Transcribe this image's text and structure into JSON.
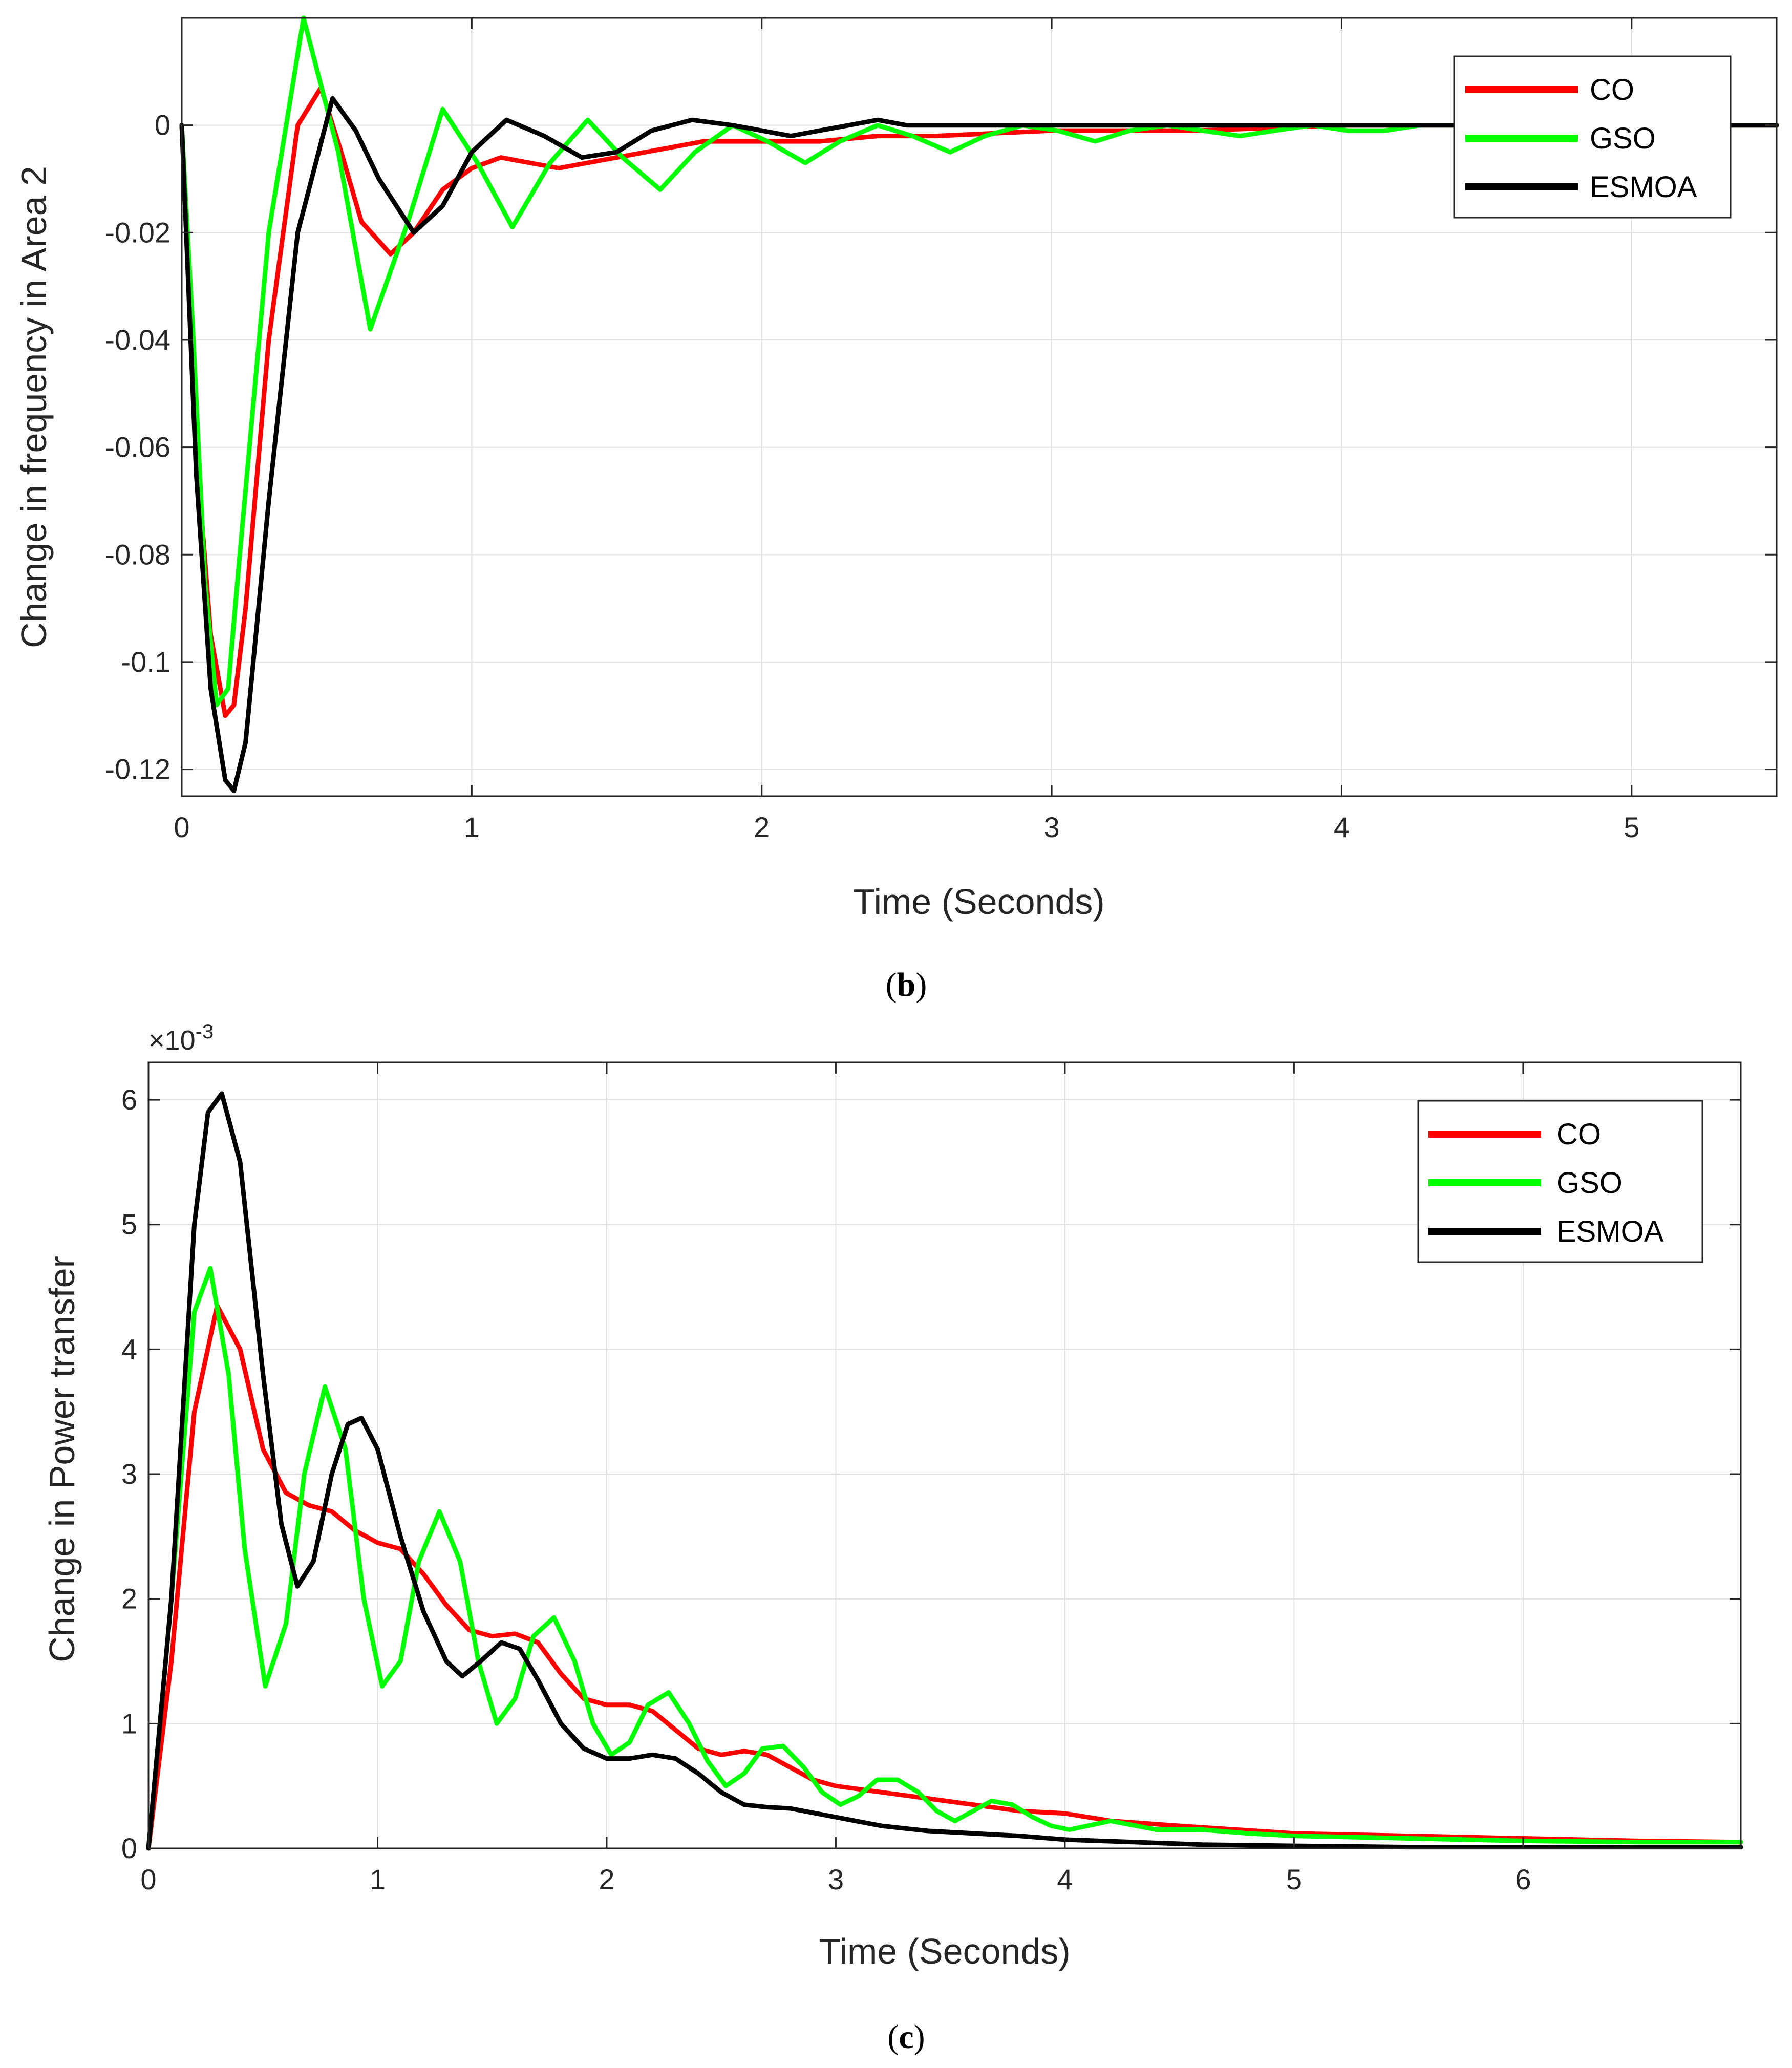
{
  "colors": {
    "CO": "#ff0000",
    "GSO": "#00ff00",
    "ESMOA": "#000000",
    "grid": "#e0e0e0",
    "axis": "#262626"
  },
  "chart_data": [
    {
      "type": "line",
      "caption_open": "(",
      "caption_letter": "b",
      "caption_close": ")",
      "title": "",
      "xlabel": "Time (Seconds)",
      "ylabel": "Change in frequency in Area 2",
      "xlim": [
        0,
        5.5
      ],
      "ylim": [
        -0.125,
        0.02
      ],
      "grid": true,
      "legend_position": "top-right",
      "xticks": [
        0,
        1,
        2,
        3,
        4,
        5
      ],
      "xtick_labels": [
        "0",
        "1",
        "2",
        "3",
        "4",
        "5"
      ],
      "yticks": [
        0,
        -0.02,
        -0.04,
        -0.06,
        -0.08,
        -0.1,
        -0.12
      ],
      "ytick_labels": [
        "0",
        "-0.02",
        "-0.04",
        "-0.06",
        "-0.08",
        "-0.1",
        "-0.12"
      ],
      "series": [
        {
          "name": "CO",
          "color": "#ff0000",
          "x": [
            0,
            0.05,
            0.1,
            0.15,
            0.18,
            0.22,
            0.3,
            0.4,
            0.48,
            0.55,
            0.62,
            0.72,
            0.8,
            0.9,
            1.0,
            1.1,
            1.2,
            1.3,
            1.4,
            1.5,
            1.6,
            1.7,
            1.8,
            1.9,
            2.0,
            2.2,
            2.4,
            2.6,
            3.0,
            3.5,
            4.0,
            4.5,
            5.0,
            5.5
          ],
          "y": [
            0,
            -0.06,
            -0.095,
            -0.11,
            -0.108,
            -0.09,
            -0.04,
            0,
            0.007,
            -0.005,
            -0.018,
            -0.024,
            -0.02,
            -0.012,
            -0.008,
            -0.006,
            -0.007,
            -0.008,
            -0.007,
            -0.006,
            -0.005,
            -0.004,
            -0.003,
            -0.003,
            -0.003,
            -0.003,
            -0.002,
            -0.002,
            -0.001,
            -0.001,
            0,
            0,
            0,
            0
          ]
        },
        {
          "name": "GSO",
          "color": "#00ff00",
          "x": [
            0,
            0.04,
            0.08,
            0.12,
            0.16,
            0.2,
            0.3,
            0.42,
            0.54,
            0.65,
            0.78,
            0.9,
            1.02,
            1.14,
            1.27,
            1.4,
            1.52,
            1.65,
            1.77,
            1.9,
            2.02,
            2.15,
            2.27,
            2.4,
            2.52,
            2.65,
            2.77,
            2.9,
            3.02,
            3.15,
            3.27,
            3.4,
            3.52,
            3.65,
            3.77,
            3.9,
            4.02,
            4.15,
            4.27,
            4.4,
            4.52,
            4.65,
            4.77,
            4.9,
            5.02,
            5.15,
            5.27,
            5.4,
            5.5
          ],
          "y": [
            0,
            -0.04,
            -0.085,
            -0.108,
            -0.105,
            -0.08,
            -0.02,
            0.02,
            -0.005,
            -0.038,
            -0.018,
            0.003,
            -0.007,
            -0.019,
            -0.007,
            0.001,
            -0.006,
            -0.012,
            -0.005,
            0,
            -0.003,
            -0.007,
            -0.003,
            0,
            -0.002,
            -0.005,
            -0.002,
            0,
            -0.001,
            -0.003,
            -0.001,
            0,
            -0.001,
            -0.002,
            -0.001,
            0,
            -0.001,
            -0.001,
            0,
            0,
            -0.001,
            0,
            0,
            0,
            0,
            0,
            0,
            0,
            0
          ]
        },
        {
          "name": "ESMOA",
          "color": "#000000",
          "x": [
            0,
            0.05,
            0.1,
            0.15,
            0.18,
            0.22,
            0.3,
            0.4,
            0.52,
            0.6,
            0.68,
            0.8,
            0.9,
            1.0,
            1.12,
            1.25,
            1.38,
            1.5,
            1.62,
            1.76,
            1.9,
            2.0,
            2.1,
            2.2,
            2.3,
            2.4,
            2.5,
            2.7,
            3.0,
            3.5,
            4.0,
            4.5,
            5.0,
            5.5
          ],
          "y": [
            0,
            -0.065,
            -0.105,
            -0.122,
            -0.124,
            -0.115,
            -0.07,
            -0.02,
            0.005,
            -0.001,
            -0.01,
            -0.02,
            -0.015,
            -0.005,
            0.001,
            -0.002,
            -0.006,
            -0.005,
            -0.001,
            0.001,
            0,
            -0.001,
            -0.002,
            -0.001,
            0,
            0.001,
            0,
            0,
            0,
            0,
            0,
            0,
            0,
            0
          ]
        }
      ]
    },
    {
      "type": "line",
      "caption_open": "(",
      "caption_letter": "c",
      "caption_close": ")",
      "title": "",
      "xlabel": "Time (Seconds)",
      "ylabel": "Change in Power transfer",
      "exponent_prefix": "×10",
      "exponent_power": "-3",
      "xlim": [
        0,
        6.95
      ],
      "ylim": [
        0,
        6.3
      ],
      "grid": true,
      "legend_position": "top-right",
      "xticks": [
        0,
        1,
        2,
        3,
        4,
        5,
        6
      ],
      "xtick_labels": [
        "0",
        "1",
        "2",
        "3",
        "4",
        "5",
        "6"
      ],
      "yticks": [
        0,
        1,
        2,
        3,
        4,
        5,
        6
      ],
      "ytick_labels": [
        "0",
        "1",
        "2",
        "3",
        "4",
        "5",
        "6"
      ],
      "series": [
        {
          "name": "CO",
          "color": "#ff0000",
          "x": [
            0,
            0.1,
            0.2,
            0.3,
            0.4,
            0.5,
            0.6,
            0.7,
            0.8,
            0.9,
            1.0,
            1.1,
            1.2,
            1.3,
            1.4,
            1.5,
            1.6,
            1.7,
            1.8,
            1.9,
            2.0,
            2.1,
            2.2,
            2.3,
            2.4,
            2.5,
            2.6,
            2.7,
            2.8,
            2.9,
            3.0,
            3.2,
            3.4,
            3.6,
            3.8,
            4.0,
            4.2,
            4.5,
            5.0,
            5.5,
            6.0,
            6.5,
            6.95
          ],
          "y": [
            0,
            1.5,
            3.5,
            4.35,
            4.0,
            3.2,
            2.85,
            2.75,
            2.7,
            2.55,
            2.45,
            2.4,
            2.2,
            1.95,
            1.75,
            1.7,
            1.72,
            1.65,
            1.4,
            1.2,
            1.15,
            1.15,
            1.1,
            0.95,
            0.8,
            0.75,
            0.78,
            0.75,
            0.65,
            0.55,
            0.5,
            0.45,
            0.4,
            0.35,
            0.3,
            0.28,
            0.22,
            0.18,
            0.12,
            0.1,
            0.08,
            0.06,
            0.05
          ]
        },
        {
          "name": "GSO",
          "color": "#00ff00",
          "x": [
            0,
            0.1,
            0.2,
            0.27,
            0.35,
            0.42,
            0.51,
            0.6,
            0.68,
            0.77,
            0.86,
            0.94,
            1.02,
            1.1,
            1.18,
            1.27,
            1.36,
            1.44,
            1.52,
            1.6,
            1.68,
            1.77,
            1.86,
            1.94,
            2.02,
            2.1,
            2.18,
            2.27,
            2.36,
            2.44,
            2.52,
            2.6,
            2.68,
            2.77,
            2.86,
            2.94,
            3.02,
            3.1,
            3.18,
            3.27,
            3.36,
            3.44,
            3.52,
            3.6,
            3.68,
            3.77,
            3.86,
            3.94,
            4.02,
            4.2,
            4.4,
            4.6,
            4.8,
            5.0,
            5.5,
            6.0,
            6.5,
            6.95
          ],
          "y": [
            0,
            2.0,
            4.3,
            4.65,
            3.8,
            2.4,
            1.3,
            1.8,
            3.0,
            3.7,
            3.2,
            2.0,
            1.3,
            1.5,
            2.3,
            2.7,
            2.3,
            1.5,
            1.0,
            1.2,
            1.7,
            1.85,
            1.5,
            1.0,
            0.75,
            0.85,
            1.15,
            1.25,
            1.0,
            0.7,
            0.5,
            0.6,
            0.8,
            0.82,
            0.65,
            0.45,
            0.35,
            0.42,
            0.55,
            0.55,
            0.45,
            0.3,
            0.22,
            0.3,
            0.38,
            0.35,
            0.25,
            0.18,
            0.15,
            0.22,
            0.15,
            0.15,
            0.12,
            0.1,
            0.08,
            0.06,
            0.05,
            0.05
          ]
        },
        {
          "name": "ESMOA",
          "color": "#000000",
          "x": [
            0,
            0.1,
            0.2,
            0.26,
            0.32,
            0.4,
            0.5,
            0.58,
            0.65,
            0.72,
            0.8,
            0.87,
            0.93,
            1.0,
            1.1,
            1.2,
            1.3,
            1.37,
            1.45,
            1.54,
            1.62,
            1.7,
            1.8,
            1.9,
            2.0,
            2.1,
            2.2,
            2.3,
            2.4,
            2.5,
            2.6,
            2.7,
            2.8,
            3.0,
            3.2,
            3.4,
            3.6,
            3.8,
            4.0,
            4.3,
            4.6,
            5.0,
            5.5,
            6.0,
            6.5,
            6.95
          ],
          "y": [
            0,
            2.0,
            5.0,
            5.9,
            6.05,
            5.5,
            3.8,
            2.6,
            2.1,
            2.3,
            3.0,
            3.4,
            3.45,
            3.2,
            2.5,
            1.9,
            1.5,
            1.38,
            1.5,
            1.65,
            1.6,
            1.35,
            1.0,
            0.8,
            0.72,
            0.72,
            0.75,
            0.72,
            0.6,
            0.45,
            0.35,
            0.33,
            0.32,
            0.25,
            0.18,
            0.14,
            0.12,
            0.1,
            0.07,
            0.05,
            0.03,
            0.02,
            0.01,
            0.01,
            0.01,
            0.01
          ]
        }
      ]
    }
  ]
}
